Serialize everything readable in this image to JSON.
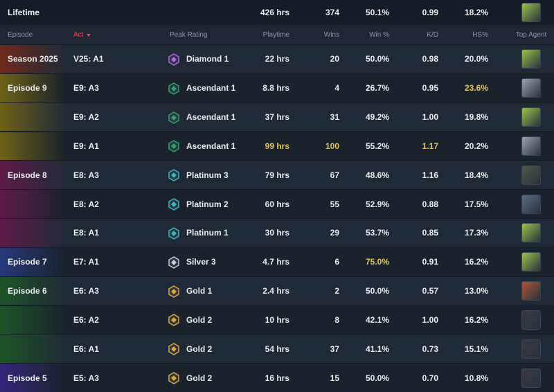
{
  "lifetime": {
    "label": "Lifetime",
    "cells": [
      "426 hrs",
      "374",
      "50.1%",
      "0.99",
      "18.2%"
    ]
  },
  "table": {
    "columns": [
      "Episode",
      "Act",
      "Peak Rating",
      "Playtime",
      "Wins",
      "Win %",
      "K/D",
      "HS%",
      "Top Agent"
    ],
    "rows": [
      [
        "Season 2025",
        "V25: A1",
        "Diamond 1",
        "22 hrs",
        "20",
        "50.0%",
        "0.98",
        "20.0%"
      ],
      [
        "Episode 9",
        "E9: A3",
        "Ascendant 1",
        "8.8 hrs",
        "4",
        "26.7%",
        "0.95",
        "23.6%"
      ],
      [
        null,
        "E9: A2",
        "Ascendant 1",
        "37 hrs",
        "31",
        "49.2%",
        "1.00",
        "19.8%"
      ],
      [
        null,
        "E9: A1",
        "Ascendant 1",
        "99 hrs",
        "100",
        "55.2%",
        "1.17",
        "20.2%"
      ],
      [
        "Episode 8",
        "E8: A3",
        "Platinum 3",
        "79 hrs",
        "67",
        "48.6%",
        "1.16",
        "18.4%"
      ],
      [
        null,
        "E8: A2",
        "Platinum 2",
        "60 hrs",
        "55",
        "52.9%",
        "0.88",
        "17.5%"
      ],
      [
        null,
        "E8: A1",
        "Platinum 1",
        "30 hrs",
        "29",
        "53.7%",
        "0.85",
        "17.3%"
      ],
      [
        "Episode 7",
        "E7: A1",
        "Silver 3",
        "4.7 hrs",
        "6",
        "75.0%",
        "0.91",
        "16.2%"
      ],
      [
        "Episode 6",
        "E6: A3",
        "Gold 1",
        "2.4 hrs",
        "2",
        "50.0%",
        "0.57",
        "13.0%"
      ],
      [
        null,
        "E6: A2",
        "Gold 2",
        "10 hrs",
        "8",
        "42.1%",
        "1.00",
        "16.2%"
      ],
      [
        null,
        "E6: A1",
        "Gold 2",
        "54 hrs",
        "37",
        "41.1%",
        "0.73",
        "15.1%"
      ],
      [
        "Episode 5",
        "E5: A3",
        "Gold 2",
        "16 hrs",
        "15",
        "50.0%",
        "0.70",
        "10.8%"
      ]
    ]
  }
}
